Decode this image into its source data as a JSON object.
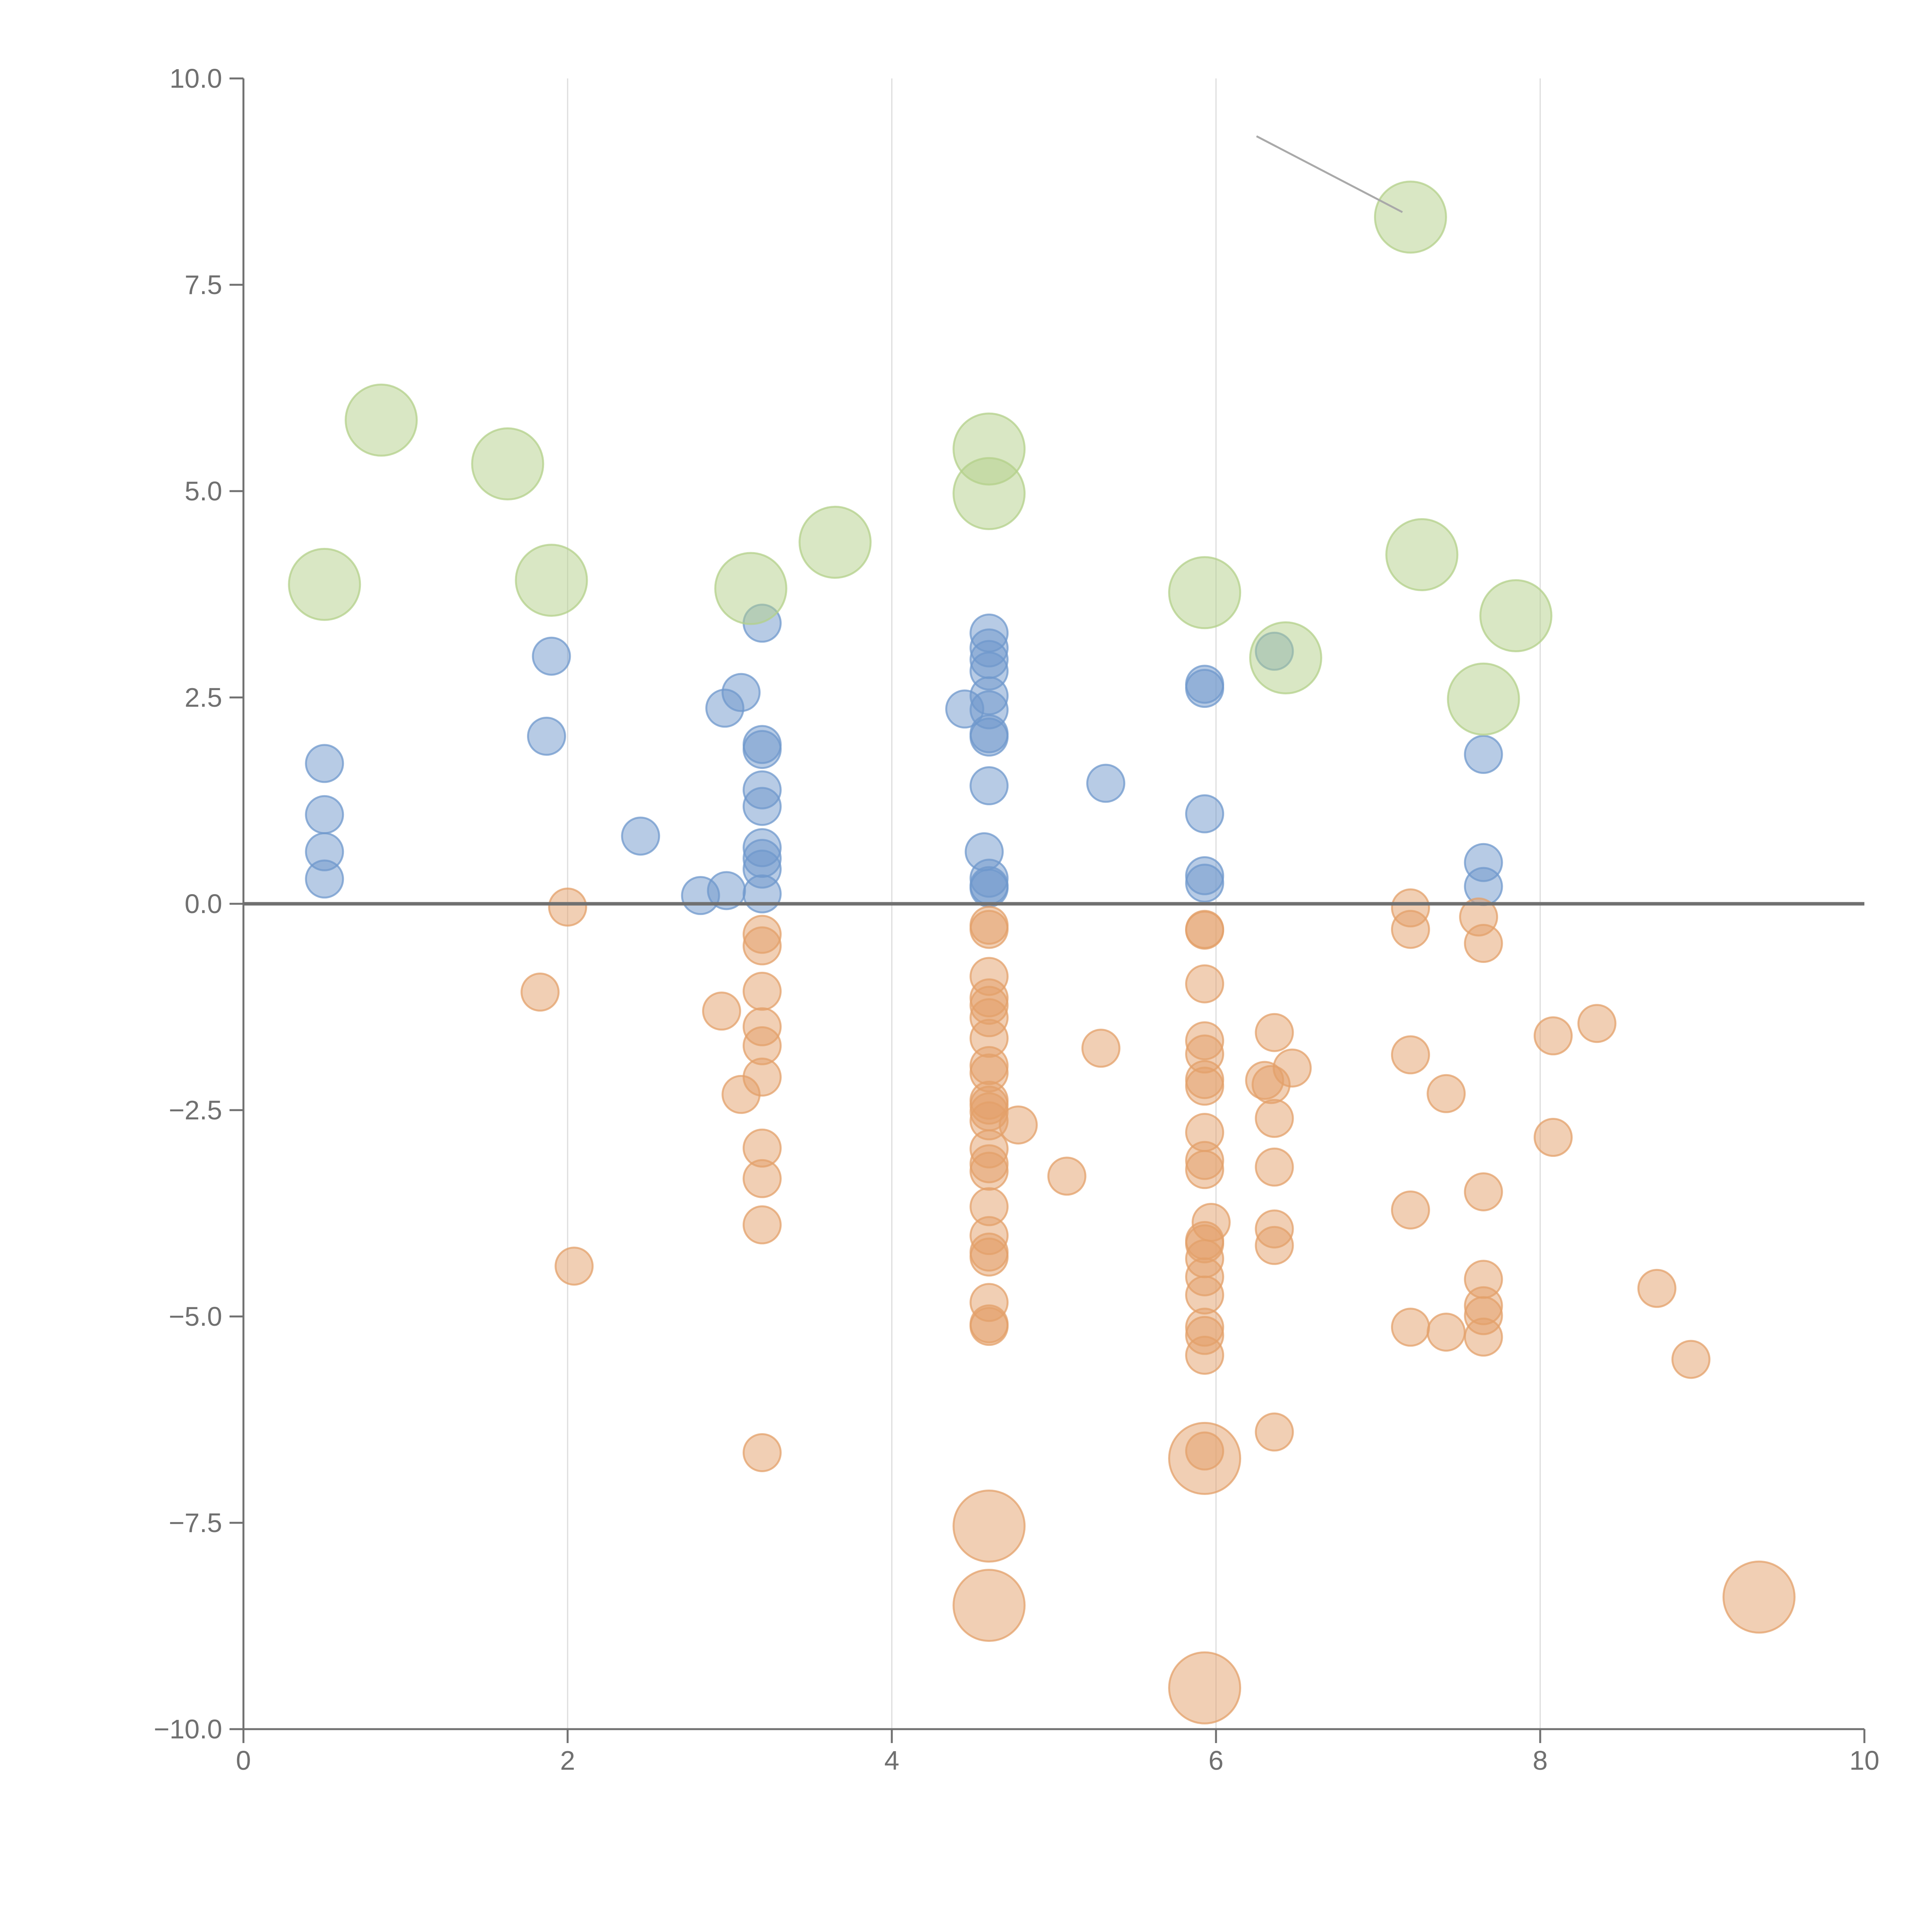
{
  "colors": {
    "positive": "#6f98cc",
    "negative": "#e3a069",
    "large": "#b3d08a",
    "axis": "#707070",
    "grid": "#dcdcdc",
    "background": "#ffffff"
  },
  "chart_data": {
    "type": "scatter",
    "title": "",
    "xlabel": "",
    "ylabel": "",
    "xlim": [
      0,
      10
    ],
    "ylim": [
      -10,
      10
    ],
    "x_ticks": [
      "0",
      "2",
      "4",
      "6",
      "8",
      "10"
    ],
    "y_ticks": [
      "10.0",
      "7.5",
      "5.0",
      "2.5",
      "0.0",
      "−2.5",
      "−5.0",
      "−7.5",
      "−10.0"
    ],
    "x_gridlines": [
      2,
      4,
      6,
      8
    ],
    "horizontal_reference_line": 0,
    "legend": "none",
    "series": [
      {
        "color": "#6f98cc",
        "size": "small",
        "points": [
          [
            0.5,
            1.7
          ],
          [
            0.5,
            1.08
          ],
          [
            0.5,
            0.63
          ],
          [
            0.5,
            0.3
          ],
          [
            1.9,
            3.0
          ],
          [
            1.87,
            2.03
          ],
          [
            2.45,
            0.82
          ],
          [
            2.82,
            0.1
          ],
          [
            2.98,
            0.16
          ],
          [
            2.97,
            2.37
          ],
          [
            3.07,
            2.56
          ],
          [
            3.2,
            3.4
          ],
          [
            3.2,
            1.93
          ],
          [
            3.2,
            1.87
          ],
          [
            3.2,
            1.38
          ],
          [
            3.2,
            1.18
          ],
          [
            3.2,
            0.68
          ],
          [
            3.2,
            0.55
          ],
          [
            3.2,
            0.42
          ],
          [
            3.2,
            0.12
          ],
          [
            4.45,
            2.36
          ],
          [
            4.6,
            3.28
          ],
          [
            4.6,
            3.1
          ],
          [
            4.6,
            2.96
          ],
          [
            4.6,
            2.82
          ],
          [
            4.6,
            2.52
          ],
          [
            4.6,
            2.35
          ],
          [
            4.6,
            2.06
          ],
          [
            4.6,
            2.02
          ],
          [
            4.6,
            1.43
          ],
          [
            4.6,
            0.31
          ],
          [
            4.6,
            0.22
          ],
          [
            4.6,
            0.19
          ],
          [
            4.57,
            0.63
          ],
          [
            5.32,
            1.46
          ],
          [
            5.93,
            2.66
          ],
          [
            5.93,
            2.61
          ],
          [
            5.93,
            1.09
          ],
          [
            5.93,
            0.34
          ],
          [
            5.93,
            0.25
          ],
          [
            6.36,
            3.06
          ],
          [
            7.65,
            1.81
          ],
          [
            7.65,
            0.5
          ],
          [
            7.65,
            0.21
          ]
        ]
      },
      {
        "color": "#e3a069",
        "size": "small",
        "points": [
          [
            2.0,
            -0.04
          ],
          [
            1.83,
            -1.07
          ],
          [
            2.04,
            -4.39
          ],
          [
            2.95,
            -1.3
          ],
          [
            3.07,
            -2.31
          ],
          [
            3.2,
            -0.37
          ],
          [
            3.2,
            -0.51
          ],
          [
            3.2,
            -1.06
          ],
          [
            3.2,
            -1.49
          ],
          [
            3.2,
            -1.72
          ],
          [
            3.2,
            -2.1
          ],
          [
            3.2,
            -2.96
          ],
          [
            3.2,
            -3.33
          ],
          [
            3.2,
            -3.89
          ],
          [
            3.2,
            -6.65
          ],
          [
            4.6,
            -0.26
          ],
          [
            4.6,
            -0.31
          ],
          [
            4.6,
            -0.88
          ],
          [
            4.6,
            -1.14
          ],
          [
            4.6,
            -1.23
          ],
          [
            4.6,
            -1.38
          ],
          [
            4.6,
            -1.63
          ],
          [
            4.6,
            -1.96
          ],
          [
            4.6,
            -2.05
          ],
          [
            4.6,
            -2.38
          ],
          [
            4.6,
            -2.44
          ],
          [
            4.6,
            -2.52
          ],
          [
            4.6,
            -2.63
          ],
          [
            4.6,
            -2.97
          ],
          [
            4.6,
            -3.15
          ],
          [
            4.6,
            -3.24
          ],
          [
            4.6,
            -3.67
          ],
          [
            4.6,
            -4.02
          ],
          [
            4.6,
            -4.22
          ],
          [
            4.6,
            -4.28
          ],
          [
            4.6,
            -4.83
          ],
          [
            4.6,
            -5.09
          ],
          [
            4.6,
            -5.12
          ],
          [
            4.78,
            -2.68
          ],
          [
            5.08,
            -3.3
          ],
          [
            5.29,
            -1.75
          ],
          [
            5.93,
            -0.31
          ],
          [
            5.93,
            -0.32
          ],
          [
            5.93,
            -0.97
          ],
          [
            5.93,
            -1.66
          ],
          [
            5.93,
            -1.82
          ],
          [
            5.93,
            -2.13
          ],
          [
            5.93,
            -2.21
          ],
          [
            5.93,
            -2.77
          ],
          [
            5.93,
            -3.11
          ],
          [
            5.93,
            -3.22
          ],
          [
            5.97,
            -3.86
          ],
          [
            5.93,
            -4.08
          ],
          [
            5.93,
            -4.12
          ],
          [
            5.93,
            -4.3
          ],
          [
            5.93,
            -4.52
          ],
          [
            5.93,
            -4.74
          ],
          [
            5.93,
            -5.13
          ],
          [
            5.93,
            -5.23
          ],
          [
            5.93,
            -5.47
          ],
          [
            5.93,
            -6.63
          ],
          [
            6.36,
            -1.56
          ],
          [
            6.34,
            -2.19
          ],
          [
            6.3,
            -2.14
          ],
          [
            6.47,
            -1.99
          ],
          [
            6.36,
            -2.6
          ],
          [
            6.36,
            -3.19
          ],
          [
            6.36,
            -3.94
          ],
          [
            6.36,
            -4.14
          ],
          [
            6.36,
            -6.4
          ],
          [
            7.2,
            -0.05
          ],
          [
            7.2,
            -0.31
          ],
          [
            7.2,
            -1.83
          ],
          [
            7.2,
            -3.71
          ],
          [
            7.2,
            -5.13
          ],
          [
            7.42,
            -2.3
          ],
          [
            7.42,
            -5.19
          ],
          [
            7.62,
            -0.16
          ],
          [
            7.65,
            -0.48
          ],
          [
            7.65,
            -3.49
          ],
          [
            7.65,
            -4.55
          ],
          [
            7.65,
            -4.87
          ],
          [
            7.65,
            -4.99
          ],
          [
            7.65,
            -5.25
          ],
          [
            8.08,
            -1.6
          ],
          [
            8.08,
            -2.83
          ],
          [
            8.35,
            -1.45
          ],
          [
            8.72,
            -4.66
          ],
          [
            8.93,
            -5.52
          ]
        ]
      },
      {
        "color": "#e3a069",
        "size": "large",
        "points": [
          [
            4.6,
            -7.54
          ],
          [
            4.6,
            -8.5
          ],
          [
            5.93,
            -6.72
          ],
          [
            5.93,
            -9.5
          ],
          [
            9.35,
            -8.4
          ]
        ]
      },
      {
        "color": "#b3d08a",
        "size": "large",
        "points": [
          [
            0.5,
            3.87
          ],
          [
            0.85,
            5.86
          ],
          [
            1.63,
            5.33
          ],
          [
            1.9,
            3.92
          ],
          [
            3.13,
            3.82
          ],
          [
            3.65,
            4.38
          ],
          [
            4.6,
            5.51
          ],
          [
            4.6,
            4.97
          ],
          [
            5.93,
            3.77
          ],
          [
            6.43,
            2.98
          ],
          [
            7.2,
            8.32
          ],
          [
            7.27,
            4.23
          ],
          [
            7.85,
            3.49
          ],
          [
            7.65,
            2.48
          ]
        ]
      }
    ],
    "annotations": [
      {
        "from": [
          6.25,
          9.3
        ],
        "to": [
          7.15,
          8.38
        ],
        "color": "#a9a9a9"
      }
    ]
  }
}
